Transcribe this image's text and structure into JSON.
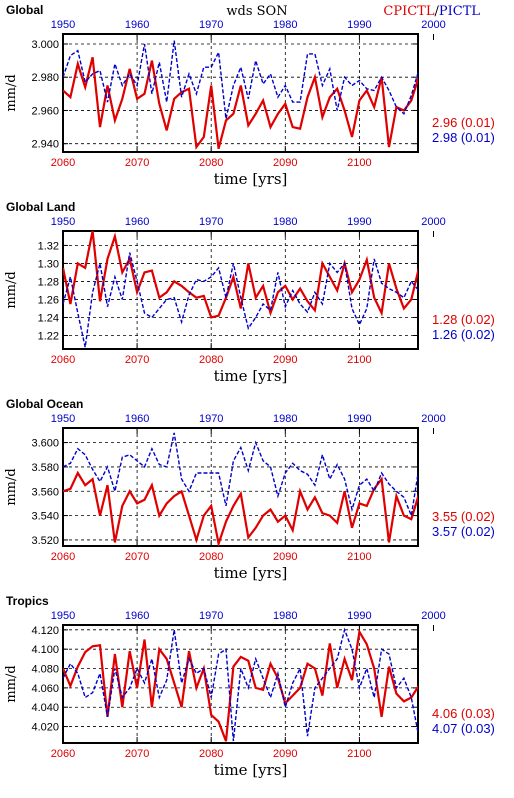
{
  "header": {
    "season_label": "wds SON",
    "legend_left": "CPICTL",
    "legend_sep": "/",
    "legend_right": "PICTL"
  },
  "colors": {
    "exp": "#e00000",
    "ctl": "#0000cc",
    "axis": "#000000"
  },
  "x_axis": {
    "bottom_ticks": [
      "2060",
      "2070",
      "2080",
      "2090",
      "2100"
    ],
    "top_ticks": [
      "1950",
      "1960",
      "1970",
      "1980",
      "1990",
      "2000"
    ],
    "xlabel": "time [yrs]"
  },
  "chart_data": [
    {
      "type": "line",
      "title": "Global",
      "ylabel": "mm/d",
      "ylim": [
        2.935,
        3.006
      ],
      "yticks": [
        "3.000",
        "2.980",
        "2.960",
        "2.940"
      ],
      "ytick_values": [
        3.0,
        2.98,
        2.96,
        2.94
      ],
      "stats": {
        "exp": "2.96 (0.01)",
        "ctl": "2.98 (0.01)"
      },
      "series": [
        {
          "name": "CPICTL",
          "axis": "bottom",
          "x_start": 2060,
          "values": [
            2.972,
            2.968,
            2.988,
            2.974,
            2.992,
            2.95,
            2.975,
            2.954,
            2.967,
            2.985,
            2.967,
            2.97,
            2.99,
            2.964,
            2.948,
            2.967,
            2.971,
            2.973,
            2.938,
            2.944,
            2.975,
            2.937,
            2.954,
            2.958,
            2.975,
            2.951,
            2.958,
            2.966,
            2.95,
            2.958,
            2.964,
            2.95,
            2.949,
            2.968,
            2.98,
            2.956,
            2.968,
            2.973,
            2.96,
            2.944,
            2.966,
            2.972,
            2.962,
            2.98,
            2.938,
            2.962,
            2.96,
            2.966,
            2.98,
            2.958
          ]
        },
        {
          "name": "PICTL",
          "axis": "top",
          "x_start": 1950,
          "values": [
            2.98,
            2.993,
            2.996,
            2.977,
            2.982,
            2.984,
            2.965,
            2.988,
            2.975,
            2.982,
            2.975,
            3.0,
            2.97,
            2.989,
            2.965,
            3.002,
            2.968,
            2.982,
            2.97,
            2.986,
            2.986,
            2.995,
            2.955,
            2.975,
            2.986,
            2.967,
            2.99,
            2.976,
            2.982,
            2.968,
            2.975,
            2.965,
            2.965,
            2.994,
            2.994,
            2.975,
            2.985,
            2.96,
            2.98,
            2.975,
            2.978,
            2.973,
            2.972,
            2.98,
            2.972,
            2.962,
            2.958,
            2.969,
            2.984,
            2.986
          ]
        }
      ]
    },
    {
      "type": "line",
      "title": "Global Land",
      "ylabel": "mm/d",
      "ylim": [
        1.205,
        1.336
      ],
      "yticks": [
        "1.32",
        "1.30",
        "1.28",
        "1.26",
        "1.24",
        "1.22"
      ],
      "ytick_values": [
        1.32,
        1.3,
        1.28,
        1.26,
        1.24,
        1.22
      ],
      "stats": {
        "exp": "1.28 (0.02)",
        "ctl": "1.26 (0.02)"
      },
      "series": [
        {
          "name": "CPICTL",
          "axis": "bottom",
          "x_start": 2060,
          "values": [
            1.295,
            1.255,
            1.3,
            1.295,
            1.336,
            1.258,
            1.305,
            1.33,
            1.29,
            1.305,
            1.268,
            1.29,
            1.292,
            1.262,
            1.268,
            1.28,
            1.275,
            1.268,
            1.262,
            1.264,
            1.24,
            1.242,
            1.262,
            1.285,
            1.25,
            1.3,
            1.262,
            1.275,
            1.245,
            1.268,
            1.275,
            1.26,
            1.272,
            1.258,
            1.248,
            1.3,
            1.285,
            1.27,
            1.3,
            1.268,
            1.282,
            1.304,
            1.262,
            1.245,
            1.3,
            1.272,
            1.25,
            1.26,
            1.294,
            1.312
          ]
        },
        {
          "name": "PICTL",
          "axis": "top",
          "x_start": 1950,
          "values": [
            1.255,
            1.285,
            1.245,
            1.207,
            1.268,
            1.3,
            1.252,
            1.285,
            1.26,
            1.312,
            1.28,
            1.245,
            1.24,
            1.25,
            1.26,
            1.262,
            1.235,
            1.265,
            1.282,
            1.28,
            1.285,
            1.295,
            1.262,
            1.3,
            1.262,
            1.228,
            1.24,
            1.255,
            1.248,
            1.29,
            1.252,
            1.27,
            1.255,
            1.246,
            1.268,
            1.255,
            1.3,
            1.29,
            1.3,
            1.25,
            1.232,
            1.25,
            1.305,
            1.278,
            1.272,
            1.268,
            1.262,
            1.28,
            1.27,
            1.282
          ]
        }
      ]
    },
    {
      "type": "line",
      "title": "Global Ocean",
      "ylabel": "mm/d",
      "ylim": [
        3.515,
        3.612
      ],
      "yticks": [
        "3.600",
        "3.580",
        "3.560",
        "3.540",
        "3.520"
      ],
      "ytick_values": [
        3.6,
        3.58,
        3.56,
        3.54,
        3.52
      ],
      "stats": {
        "exp": "3.55 (0.02)",
        "ctl": "3.57 (0.02)"
      },
      "series": [
        {
          "name": "CPICTL",
          "axis": "bottom",
          "x_start": 2060,
          "values": [
            3.56,
            3.562,
            3.575,
            3.565,
            3.57,
            3.54,
            3.565,
            3.518,
            3.548,
            3.56,
            3.55,
            3.553,
            3.565,
            3.54,
            3.55,
            3.556,
            3.56,
            3.54,
            3.52,
            3.54,
            3.548,
            3.517,
            3.535,
            3.548,
            3.558,
            3.522,
            3.53,
            3.54,
            3.545,
            3.535,
            3.54,
            3.528,
            3.56,
            3.545,
            3.555,
            3.542,
            3.54,
            3.534,
            3.56,
            3.53,
            3.55,
            3.548,
            3.562,
            3.57,
            3.518,
            3.556,
            3.54,
            3.537,
            3.557,
            3.545
          ]
        },
        {
          "name": "PICTL",
          "axis": "top",
          "x_start": 1950,
          "values": [
            3.58,
            3.583,
            3.595,
            3.59,
            3.578,
            3.568,
            3.58,
            3.56,
            3.588,
            3.59,
            3.585,
            3.58,
            3.595,
            3.582,
            3.58,
            3.608,
            3.57,
            3.56,
            3.575,
            3.575,
            3.575,
            3.575,
            3.548,
            3.585,
            3.596,
            3.577,
            3.6,
            3.585,
            3.58,
            3.556,
            3.575,
            3.583,
            3.577,
            3.574,
            3.565,
            3.59,
            3.57,
            3.582,
            3.57,
            3.545,
            3.565,
            3.57,
            3.56,
            3.575,
            3.566,
            3.56,
            3.555,
            3.54,
            3.578,
            3.576
          ]
        }
      ]
    },
    {
      "type": "line",
      "title": "Tropics",
      "ylabel": "mm/d",
      "ylim": [
        4.003,
        4.125
      ],
      "yticks": [
        "4.120",
        "4.100",
        "4.080",
        "4.060",
        "4.040",
        "4.020"
      ],
      "ytick_values": [
        4.12,
        4.1,
        4.08,
        4.06,
        4.04,
        4.02
      ],
      "stats": {
        "exp": "4.06 (0.03)",
        "ctl": "4.07 (0.03)"
      },
      "series": [
        {
          "name": "CPICTL",
          "axis": "bottom",
          "x_start": 2060,
          "values": [
            4.08,
            4.062,
            4.082,
            4.097,
            4.103,
            4.104,
            4.03,
            4.095,
            4.04,
            4.098,
            4.06,
            4.11,
            4.04,
            4.1,
            4.09,
            4.065,
            4.04,
            4.098,
            4.06,
            4.08,
            4.032,
            4.025,
            4.005,
            4.082,
            4.092,
            4.088,
            4.06,
            4.058,
            4.085,
            4.07,
            4.044,
            4.052,
            4.06,
            4.085,
            4.08,
            4.052,
            4.106,
            4.06,
            4.09,
            4.068,
            4.118,
            4.105,
            4.08,
            4.03,
            4.082,
            4.054,
            4.046,
            4.05,
            4.062,
            4.09
          ]
        },
        {
          "name": "PICTL",
          "axis": "top",
          "x_start": 1950,
          "values": [
            4.07,
            4.085,
            4.075,
            4.05,
            4.055,
            4.075,
            4.03,
            4.08,
            4.05,
            4.06,
            4.08,
            4.065,
            4.09,
            4.05,
            4.068,
            4.12,
            4.065,
            4.09,
            4.075,
            4.08,
            4.05,
            4.095,
            4.1,
            4.005,
            4.08,
            4.06,
            4.09,
            4.07,
            4.05,
            4.075,
            4.04,
            4.065,
            4.08,
            4.01,
            4.06,
            4.07,
            4.08,
            4.09,
            4.12,
            4.1,
            4.06,
            4.08,
            4.05,
            4.1,
            4.095,
            4.06,
            4.07,
            4.05,
            4.01,
            4.098
          ]
        }
      ]
    }
  ]
}
